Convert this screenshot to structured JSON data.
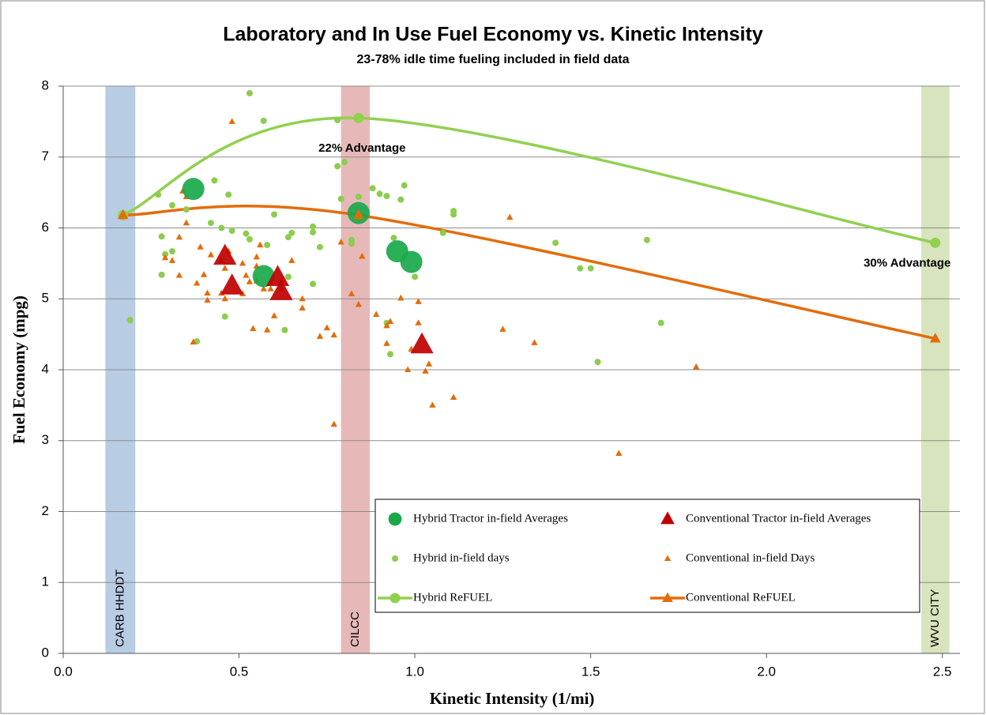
{
  "chart_data": {
    "type": "scatter",
    "title": "Laboratory and In Use Fuel Economy vs. Kinetic Intensity",
    "subtitle": "23-78% idle time fueling included in field data",
    "x_label": "Kinetic Intensity (1/mi)",
    "y_label": "Fuel Economy (mpg)",
    "xlim": [
      0,
      2.55
    ],
    "ylim": [
      0,
      8
    ],
    "xticks": [
      {
        "value": 0,
        "label": "0.0"
      },
      0.5,
      {
        "value": 1,
        "label": "1.0"
      },
      1.5,
      {
        "value": 2,
        "label": "2.0"
      },
      2.5
    ],
    "yticks": [
      0,
      1,
      2,
      3,
      4,
      5,
      6,
      7,
      8
    ],
    "grid": true,
    "legend": "lower right",
    "bands": [
      {
        "label": "CARB HHDDT",
        "xlim": [
          0.12,
          0.205
        ],
        "color": "#b8cce4"
      },
      {
        "label": "CILCC",
        "xlim": [
          0.79,
          0.872
        ],
        "color": "#e6b9b8"
      },
      {
        "label": "WVU CITY",
        "xlim": [
          2.44,
          2.52
        ],
        "color": "#d7e4bd"
      }
    ],
    "annotations": [
      {
        "text": "22% Advantage",
        "x": 0.85,
        "y": 7.12
      },
      {
        "text": "30% Advantage",
        "x": 2.4,
        "y": 5.5
      }
    ],
    "series": [
      {
        "name": "Hybrid Tractor in-field Averages",
        "color": "#1aa84b",
        "marker": "circle",
        "size": "large",
        "x": [
          0.37,
          0.84,
          0.57,
          0.95,
          0.99
        ],
        "y": [
          6.55,
          6.21,
          5.32,
          5.67,
          5.52
        ]
      },
      {
        "name": "Conventional Tractor in-field Averages",
        "color": "#c00000",
        "marker": "triangle",
        "size": "large",
        "x": [
          0.46,
          0.48,
          0.61,
          0.62,
          1.02
        ],
        "y": [
          5.6,
          5.18,
          5.3,
          5.1,
          4.35
        ]
      },
      {
        "name": "Hybrid in-field days",
        "color": "#8ccc4f",
        "marker": "circle",
        "size": "small",
        "x": [
          0.53,
          0.57,
          0.78,
          0.78,
          0.8,
          0.27,
          0.43,
          0.47,
          0.31,
          0.35,
          0.42,
          0.28,
          0.29,
          0.31,
          0.45,
          0.48,
          0.52,
          0.53,
          0.6,
          0.58,
          0.65,
          0.64,
          0.73,
          0.71,
          0.71,
          0.79,
          0.84,
          0.82,
          0.82,
          0.28,
          0.46,
          0.38,
          0.19,
          0.64,
          0.62,
          0.63,
          0.71,
          0.88,
          0.9,
          0.92,
          0.96,
          0.97,
          0.94,
          0.92,
          0.93,
          1.0,
          1.08,
          1.11,
          1.11,
          1.4,
          1.47,
          1.5,
          1.66,
          1.7,
          1.52
        ],
        "y": [
          7.9,
          7.51,
          7.52,
          6.87,
          6.93,
          6.47,
          6.67,
          6.47,
          6.32,
          6.26,
          6.07,
          5.88,
          5.63,
          5.67,
          6.0,
          5.96,
          5.92,
          5.84,
          6.19,
          5.76,
          5.93,
          5.87,
          5.73,
          6.02,
          5.94,
          6.41,
          6.44,
          5.83,
          5.78,
          5.34,
          4.75,
          4.4,
          4.7,
          5.31,
          5.24,
          4.56,
          5.21,
          6.56,
          6.48,
          6.45,
          6.4,
          6.6,
          5.86,
          4.66,
          4.22,
          5.31,
          5.93,
          6.19,
          6.24,
          5.79,
          5.43,
          5.43,
          5.83,
          4.66,
          4.11
        ]
      },
      {
        "name": "Conventional in-field Days",
        "color": "#e36c0a",
        "marker": "triangle",
        "size": "small",
        "x": [
          0.48,
          0.34,
          0.35,
          0.35,
          0.33,
          0.31,
          0.29,
          0.33,
          0.38,
          0.39,
          0.42,
          0.4,
          0.41,
          0.41,
          0.45,
          0.37,
          0.46,
          0.47,
          0.45,
          0.46,
          0.51,
          0.52,
          0.53,
          0.51,
          0.54,
          0.55,
          0.56,
          0.55,
          0.55,
          0.57,
          0.58,
          0.59,
          0.6,
          0.62,
          0.65,
          0.68,
          0.68,
          0.73,
          0.75,
          0.77,
          0.77,
          0.79,
          0.82,
          0.84,
          0.85,
          0.89,
          0.92,
          0.93,
          0.92,
          0.96,
          1.01,
          1.01,
          0.99,
          0.98,
          1.03,
          1.04,
          1.05,
          1.11,
          1.27,
          1.25,
          1.34,
          1.58,
          1.8
        ],
        "y": [
          7.5,
          6.52,
          6.44,
          6.07,
          5.87,
          5.54,
          5.58,
          5.33,
          5.22,
          5.73,
          5.62,
          5.34,
          5.08,
          4.98,
          5.08,
          4.39,
          5.0,
          5.67,
          5.54,
          5.43,
          5.5,
          5.33,
          5.24,
          5.07,
          4.58,
          5.59,
          5.76,
          5.46,
          5.25,
          5.14,
          4.56,
          5.14,
          4.76,
          5.14,
          5.54,
          5.0,
          4.87,
          4.47,
          4.59,
          4.49,
          3.23,
          5.8,
          5.07,
          4.92,
          5.6,
          4.78,
          4.62,
          4.68,
          4.37,
          5.01,
          4.66,
          4.96,
          4.29,
          4.0,
          3.98,
          4.08,
          3.5,
          3.61,
          6.15,
          4.57,
          4.38,
          2.82,
          4.04
        ]
      },
      {
        "name": "Hybrid ReFUEL",
        "color": "#92d050",
        "marker": "circle",
        "size": "medium",
        "line": true,
        "x": [
          0.17,
          0.84,
          2.48
        ],
        "y": [
          6.18,
          7.55,
          5.79
        ]
      },
      {
        "name": "Conventional ReFUEL",
        "color": "#e36c0a",
        "marker": "triangle",
        "size": "medium",
        "line": true,
        "x": [
          0.17,
          0.84,
          2.48
        ],
        "y": [
          6.18,
          6.18,
          4.44
        ]
      }
    ]
  }
}
